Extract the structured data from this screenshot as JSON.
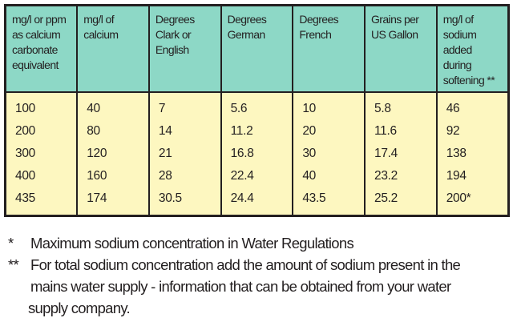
{
  "table": {
    "headers": [
      "mg/l or ppm as calcium carbonate equivalent",
      "mg/l of calcium",
      "Degrees Clark or English",
      "Degrees German",
      "Degrees French",
      "Grains per US Gallon",
      "mg/l of sodium added during softening **"
    ],
    "rows": [
      [
        "100",
        "40",
        "7",
        "5.6",
        "10",
        "5.8",
        "46"
      ],
      [
        "200",
        "80",
        "14",
        "11.2",
        "20",
        "11.6",
        "92"
      ],
      [
        "300",
        "120",
        "21",
        "16.8",
        "30",
        "17.4",
        "138"
      ],
      [
        "400",
        "160",
        "28",
        "22.4",
        "40",
        "23.2",
        "194"
      ],
      [
        "435",
        "174",
        "30.5",
        "24.4",
        "43.5",
        "25.2",
        "200*"
      ]
    ],
    "colors": {
      "header_bg": "#8dd8c6",
      "body_bg": "#fdf7c0",
      "border": "#231f20"
    }
  },
  "footnotes": [
    {
      "mark": "*",
      "text": "Maximum sodium concentration in Water Regulations"
    },
    {
      "mark": "**",
      "lines": [
        "For total sodium concentration add the amount of sodium present in the",
        "mains water supply - information that can be obtained from your water",
        "supply company."
      ]
    }
  ]
}
